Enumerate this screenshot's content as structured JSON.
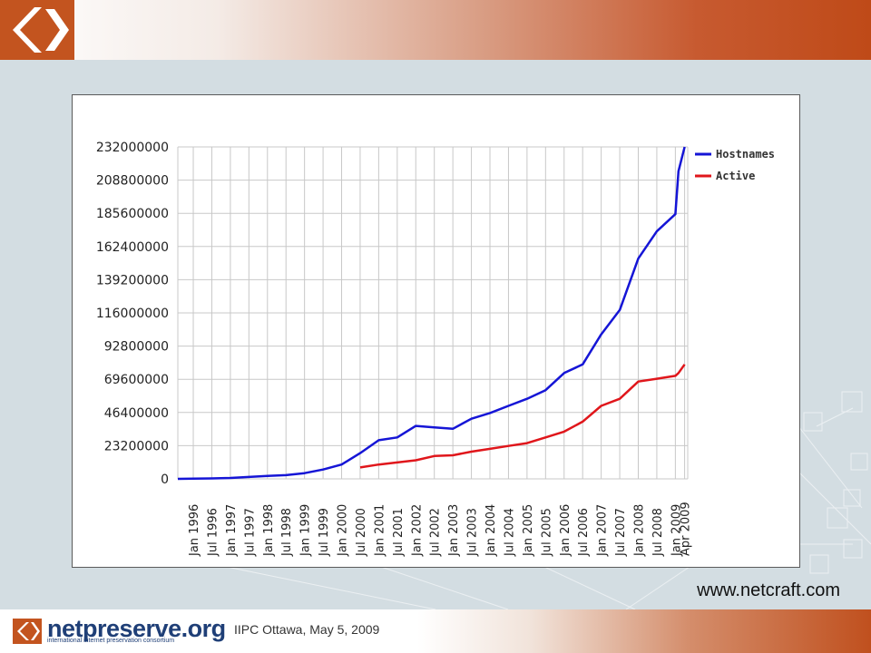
{
  "header": {
    "logo_icon": "angle-brackets-logo-icon"
  },
  "source_credit": "www.netcraft.com",
  "footer": {
    "brand_name": "netpreserve.org",
    "brand_tagline": "international internet preservation consortium",
    "event": "IIPC Ottawa, May 5, 2009",
    "brand_icon": "angle-brackets-logo-icon"
  },
  "colors": {
    "hostnames": "#1515d6",
    "active": "#e0161b",
    "accent": "#c3541f",
    "brand": "#1f3f77"
  },
  "chart_data": {
    "type": "line",
    "title": "",
    "xlabel": "",
    "ylabel": "",
    "ylim": [
      0,
      232000000
    ],
    "yticks": [
      0,
      23200000,
      46400000,
      69600000,
      92800000,
      116000000,
      139200000,
      162400000,
      185600000,
      208800000,
      232000000
    ],
    "xticks": [
      "Jan 1996",
      "Jul 1996",
      "Jan 1997",
      "Jul 1997",
      "Jan 1998",
      "Jul 1998",
      "Jan 1999",
      "Jul 1999",
      "Jan 2000",
      "Jul 2000",
      "Jan 2001",
      "Jul 2001",
      "Jan 2002",
      "Jul 2002",
      "Jan 2003",
      "Jul 2003",
      "Jan 2004",
      "Jul 2004",
      "Jan 2005",
      "Jul 2005",
      "Jan 2006",
      "Jul 2006",
      "Jan 2007",
      "Jul 2007",
      "Jan 2008",
      "Jul 2008",
      "Jan 2009",
      "Apr 2009"
    ],
    "grid": true,
    "legend_position": "top-right",
    "series": [
      {
        "name": "Hostnames",
        "x": [
          "1995-08",
          "1996-01",
          "1996-07",
          "1997-01",
          "1997-07",
          "1998-01",
          "1998-07",
          "1999-01",
          "1999-07",
          "2000-01",
          "2000-07",
          "2001-01",
          "2001-07",
          "2002-01",
          "2002-07",
          "2003-01",
          "2003-07",
          "2004-01",
          "2004-07",
          "2005-01",
          "2005-07",
          "2006-01",
          "2006-07",
          "2007-01",
          "2007-07",
          "2008-01",
          "2008-07",
          "2009-01",
          "2009-02",
          "2009-04"
        ],
        "values": [
          18000,
          100000,
          300000,
          650000,
          1300000,
          2000000,
          2600000,
          4000000,
          6500000,
          10000000,
          18000000,
          27000000,
          29000000,
          37000000,
          36000000,
          35000000,
          42000000,
          46000000,
          51000000,
          56000000,
          62000000,
          74000000,
          80000000,
          101000000,
          118000000,
          154000000,
          173000000,
          185000000,
          215000000,
          232000000
        ]
      },
      {
        "name": "Active",
        "x": [
          "2000-07",
          "2001-01",
          "2001-07",
          "2002-01",
          "2002-07",
          "2003-01",
          "2003-07",
          "2004-01",
          "2004-07",
          "2005-01",
          "2005-07",
          "2006-01",
          "2006-07",
          "2007-01",
          "2007-07",
          "2008-01",
          "2008-07",
          "2009-01",
          "2009-02",
          "2009-04"
        ],
        "values": [
          8000000,
          10000000,
          11500000,
          13000000,
          16000000,
          16500000,
          19000000,
          21000000,
          23000000,
          25000000,
          29000000,
          33000000,
          40000000,
          51000000,
          56000000,
          68000000,
          70000000,
          72000000,
          74000000,
          80000000
        ]
      }
    ]
  }
}
